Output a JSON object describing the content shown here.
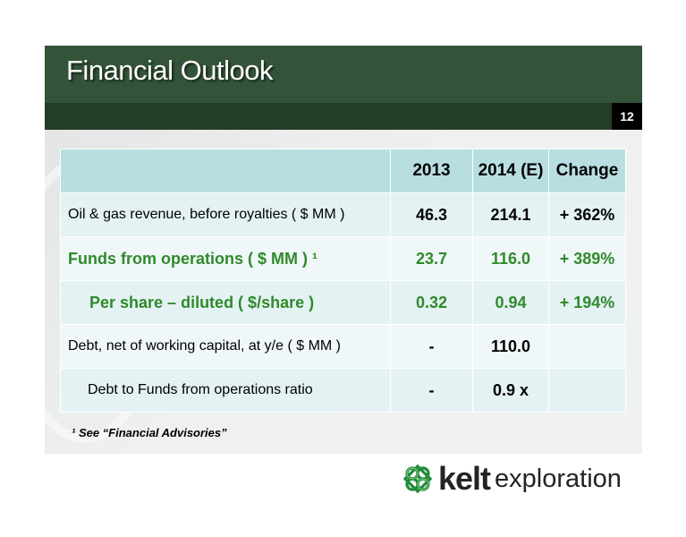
{
  "slide": {
    "title": "Financial Outlook",
    "page_number": "12"
  },
  "table": {
    "headers": [
      "",
      "2013",
      "2014 (E)",
      "Change"
    ],
    "rows": [
      {
        "label": "Oil & gas revenue, before royalties ( $ MM )",
        "v2013": "46.3",
        "v2014": "214.1",
        "change": "+ 362%"
      },
      {
        "label": "Funds from operations ( $ MM ) ¹",
        "v2013": "23.7",
        "v2014": "116.0",
        "change": "+ 389%"
      },
      {
        "label": "Per share – diluted ( $/share )",
        "v2013": "0.32",
        "v2014": "0.94",
        "change": "+ 194%"
      },
      {
        "label": "Debt, net of working capital, at y/e ( $ MM )",
        "v2013": "-",
        "v2014": "110.0",
        "change": ""
      },
      {
        "label": "Debt to Funds from operations ratio",
        "v2013": "-",
        "v2014": "0.9 x",
        "change": ""
      }
    ]
  },
  "footnote": "¹ See “Financial Advisories”",
  "logo": {
    "brand": "kelt",
    "tagline": "exploration",
    "icon": "celtic-knot-icon"
  },
  "colors": {
    "header": "#335439",
    "header_band": "#243d29",
    "table_header": "#b9dee2",
    "highlight_text": "#2f8a2c"
  }
}
